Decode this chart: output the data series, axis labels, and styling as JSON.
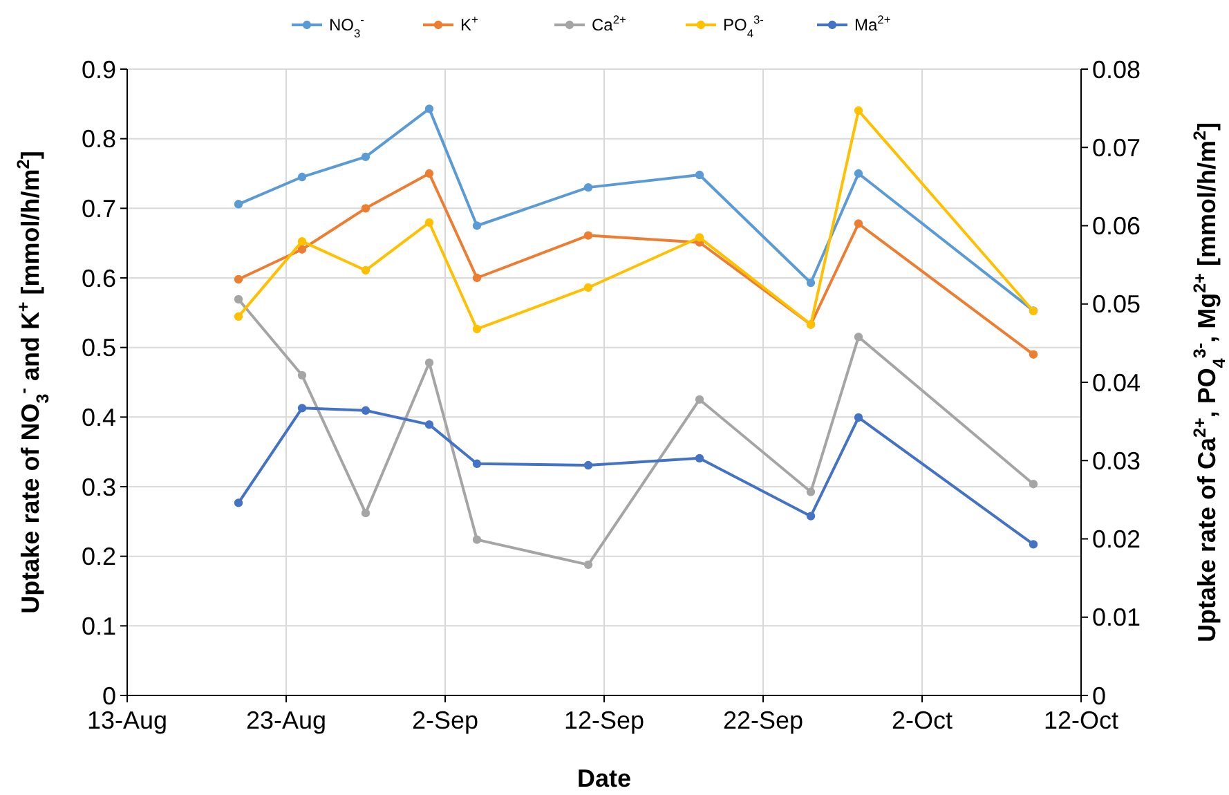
{
  "chart_data": {
    "type": "line",
    "xlabel": "Date",
    "ylabel": "Uptake rate of NO$_{3}$$^{-}$ and K$^{+}$ [mmol/h/m$^{2}$]",
    "y2label": "Uptake rate of Ca$^{2+}$, PO$_{4}$$^{3-}$, Mg$^{2+}$ [mmol/h/m$^{2}$]",
    "x": [
      "--08-20",
      "--08-24",
      "--08-28",
      "--09-01",
      "--09-04",
      "--09-11",
      "--09-18",
      "--09-25",
      "--09-28",
      "--10-09"
    ],
    "series": [
      {
        "name": "NO$_{3}$$^{-}$",
        "color": "#5b9bd5",
        "values": [
          0.706,
          0.745,
          0.774,
          0.843,
          0.675,
          0.73,
          0.748,
          0.593,
          0.75,
          0.553
        ]
      },
      {
        "name": "K$^{+}$",
        "color": "#ed7d31",
        "values": [
          0.598,
          0.641,
          0.7,
          0.75,
          0.6,
          0.661,
          0.651,
          0.533,
          0.678,
          0.49
        ]
      },
      {
        "name": "Ca$^{2+}$",
        "color": "#a5a5a5",
        "axis": "y2",
        "values": [
          0.0506,
          0.0409,
          0.0233,
          0.0425,
          0.0199,
          0.0167,
          0.0378,
          0.026,
          0.0458,
          0.027
        ]
      },
      {
        "name": "PO$_{4}$$^{3-}$",
        "color": "#ffc000",
        "axis": "y2",
        "values": [
          0.0484,
          0.058,
          0.0543,
          0.0604,
          0.0468,
          0.0521,
          0.0585,
          0.0474,
          0.0747,
          0.0491
        ]
      },
      {
        "name": "Ma$^{2+}$",
        "color": "#4472c4",
        "axis": "y2",
        "values": [
          0.0246,
          0.0367,
          0.0364,
          0.0346,
          0.0296,
          0.0294,
          0.0303,
          0.0229,
          0.0355,
          0.0193
        ]
      }
    ],
    "xlim": [
      "--08-13",
      "--10-12"
    ],
    "xticks": [
      {
        "value": "--08-13",
        "label": "13-Aug"
      },
      {
        "value": "--08-23",
        "label": "23-Aug"
      },
      {
        "value": "--09-02",
        "label": "2-Sep"
      },
      {
        "value": "--09-12",
        "label": "12-Sep"
      },
      {
        "value": "--09-22",
        "label": "22-Sep"
      },
      {
        "value": "--10-02",
        "label": "2-Oct"
      },
      {
        "value": "--10-12",
        "label": "12-Oct"
      }
    ],
    "ylim": [
      0,
      0.9
    ],
    "yticks": [
      0,
      0.1,
      0.2,
      0.3,
      0.4,
      0.5,
      0.6,
      0.7,
      0.8,
      0.9
    ],
    "y2lim": [
      0,
      0.08
    ],
    "y2ticks": [
      0,
      0.01,
      0.02,
      0.03,
      0.04,
      0.05,
      0.06,
      0.07,
      0.08
    ],
    "grid": true,
    "legend": "top",
    "marker": "circle",
    "line_style": "solid"
  }
}
